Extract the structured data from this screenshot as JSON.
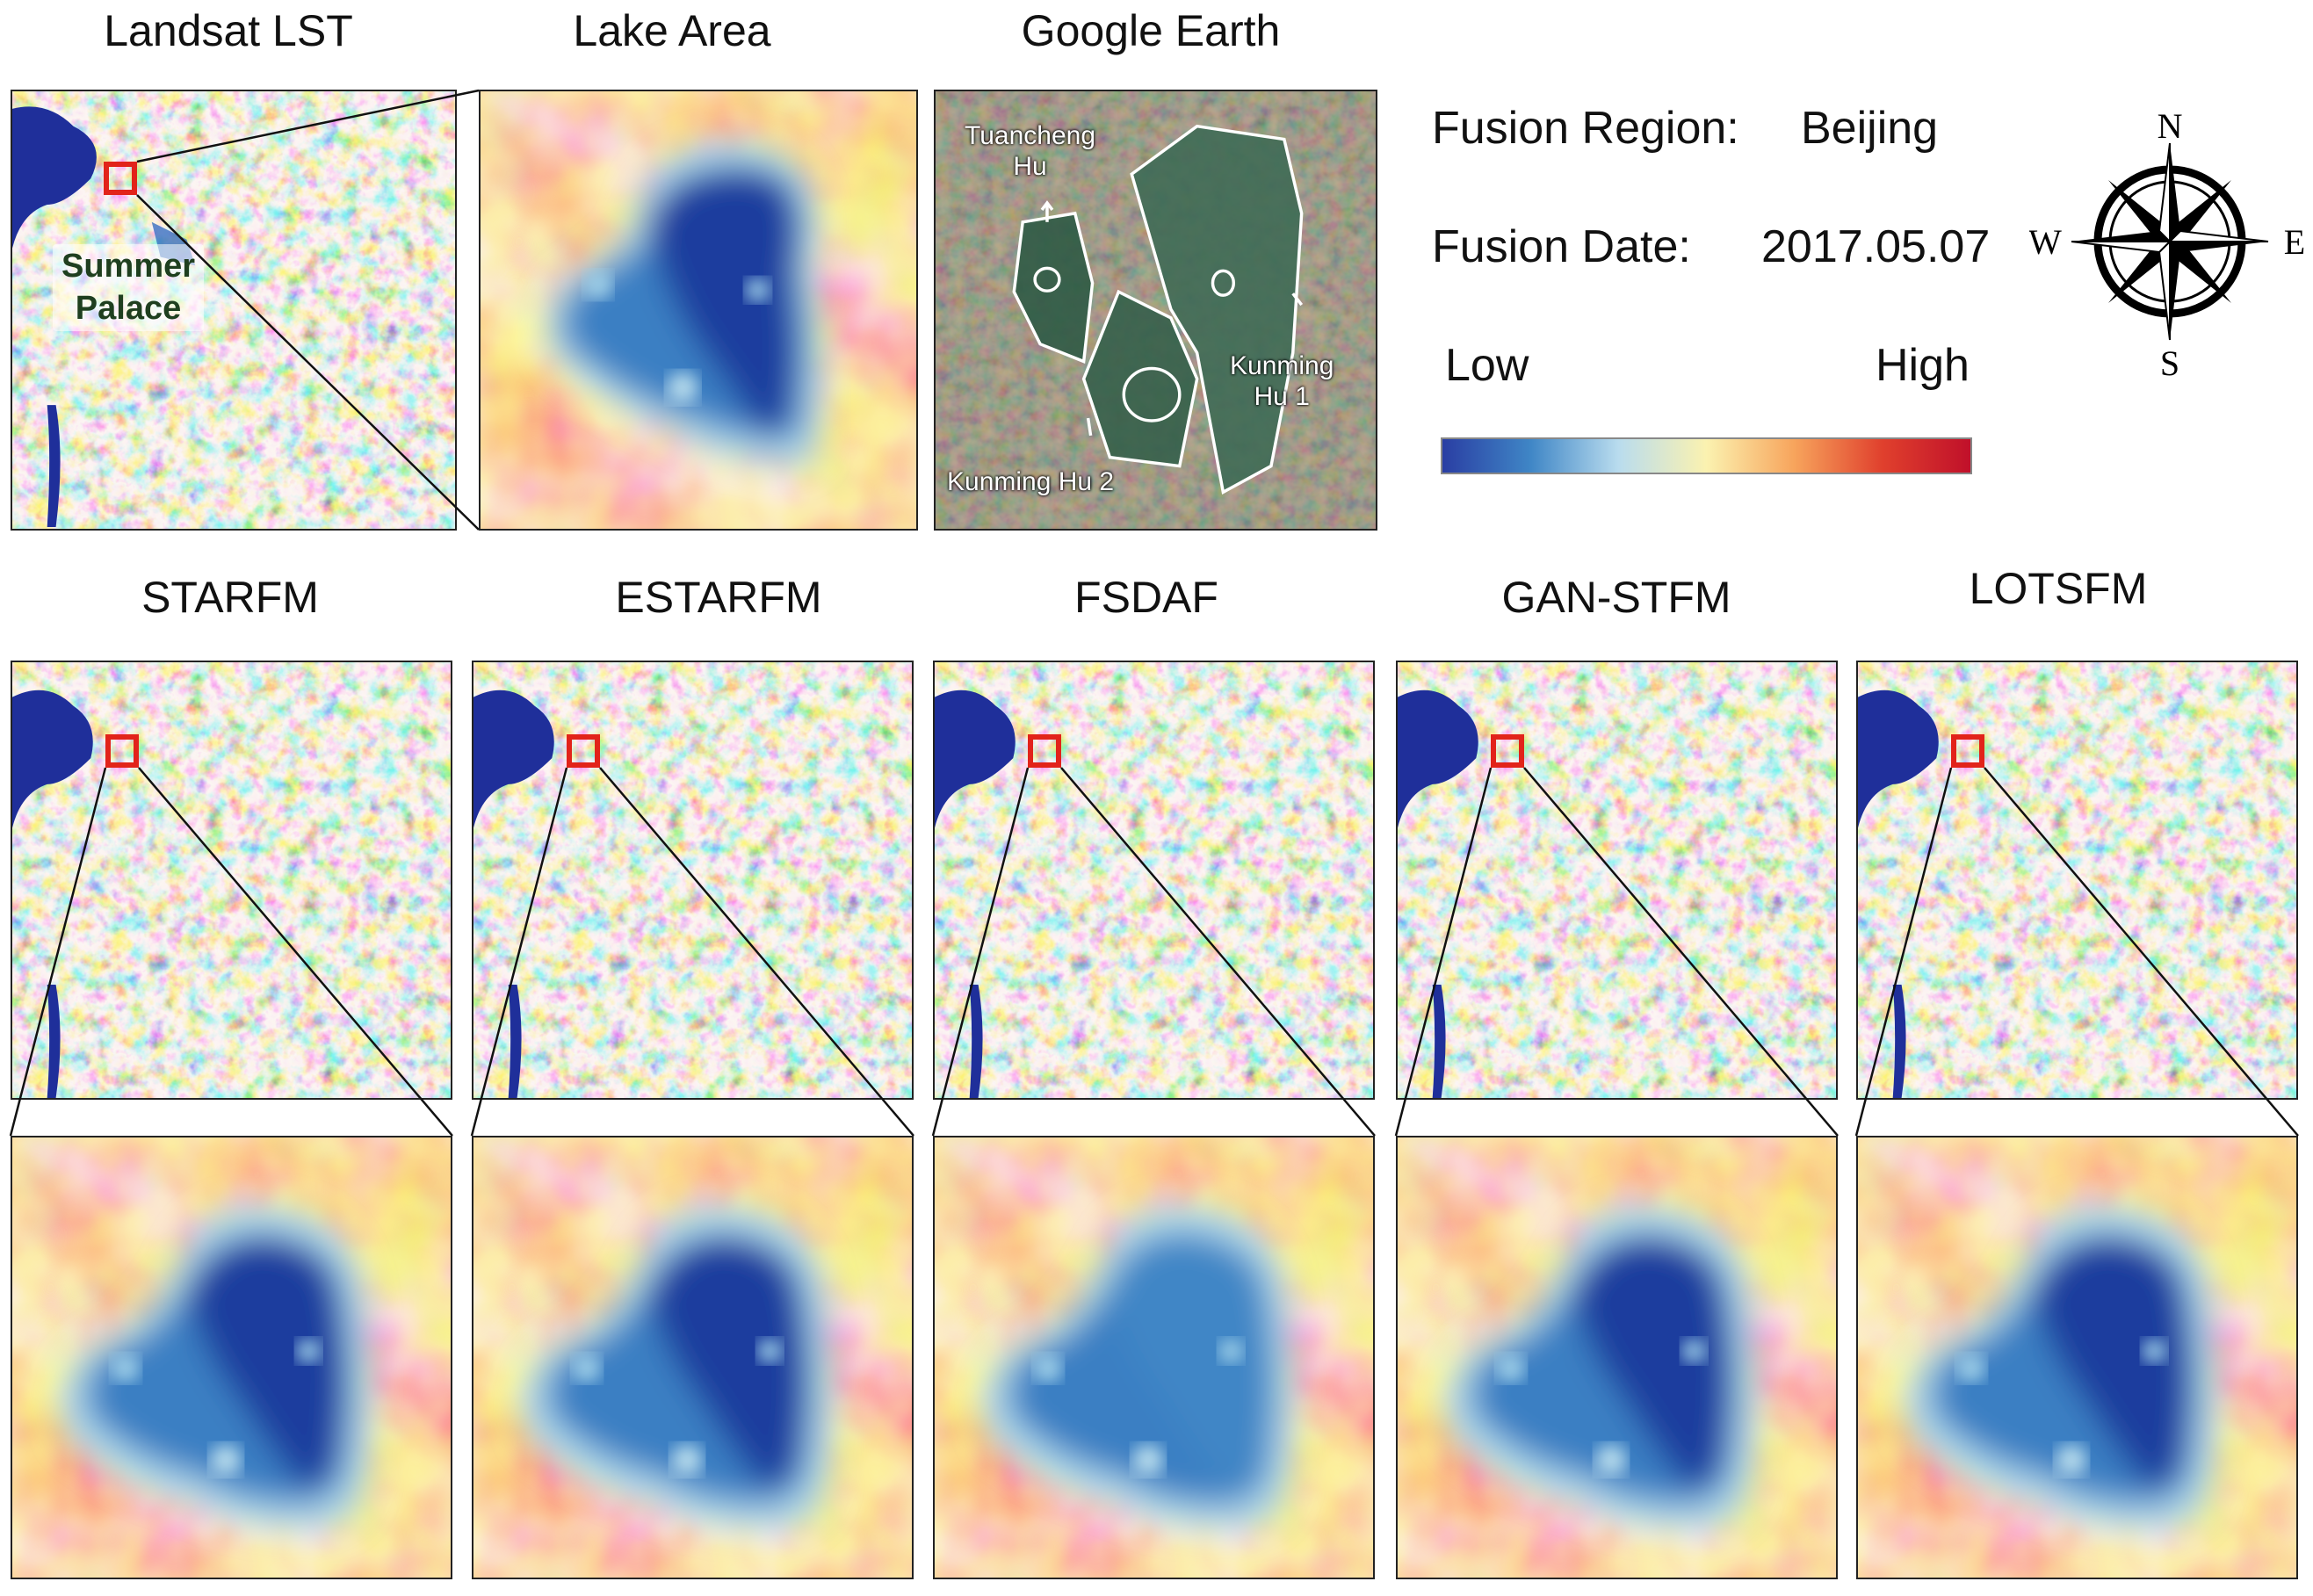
{
  "titles": {
    "landsat": "Landsat LST",
    "lake": "Lake Area",
    "google": "Google Earth"
  },
  "info": {
    "region_label": "Fusion Region:",
    "region_value": "Beijing",
    "date_label": "Fusion Date:",
    "date_value": "2017.05.07"
  },
  "colorbar": {
    "low": "Low",
    "high": "High",
    "colors": [
      "#2a3ea3",
      "#3f86c6",
      "#b9dcee",
      "#fbf2b0",
      "#f7a45c",
      "#e0402d",
      "#c0102a"
    ]
  },
  "compass": {
    "n": "N",
    "s": "S",
    "e": "E",
    "w": "W"
  },
  "landsat_label": {
    "line1": "Summer",
    "line2": "Palace"
  },
  "google_labels": {
    "tuancheng_1": "Tuancheng",
    "tuancheng_2": "Hu",
    "kunming1_1": "Kunming",
    "kunming1_2": "Hu 1",
    "kunming2": "Kunming Hu 2"
  },
  "methods": [
    "STARFM",
    "ESTARFM",
    "FSDAF",
    "GAN-STFM",
    "LOTSFM"
  ]
}
